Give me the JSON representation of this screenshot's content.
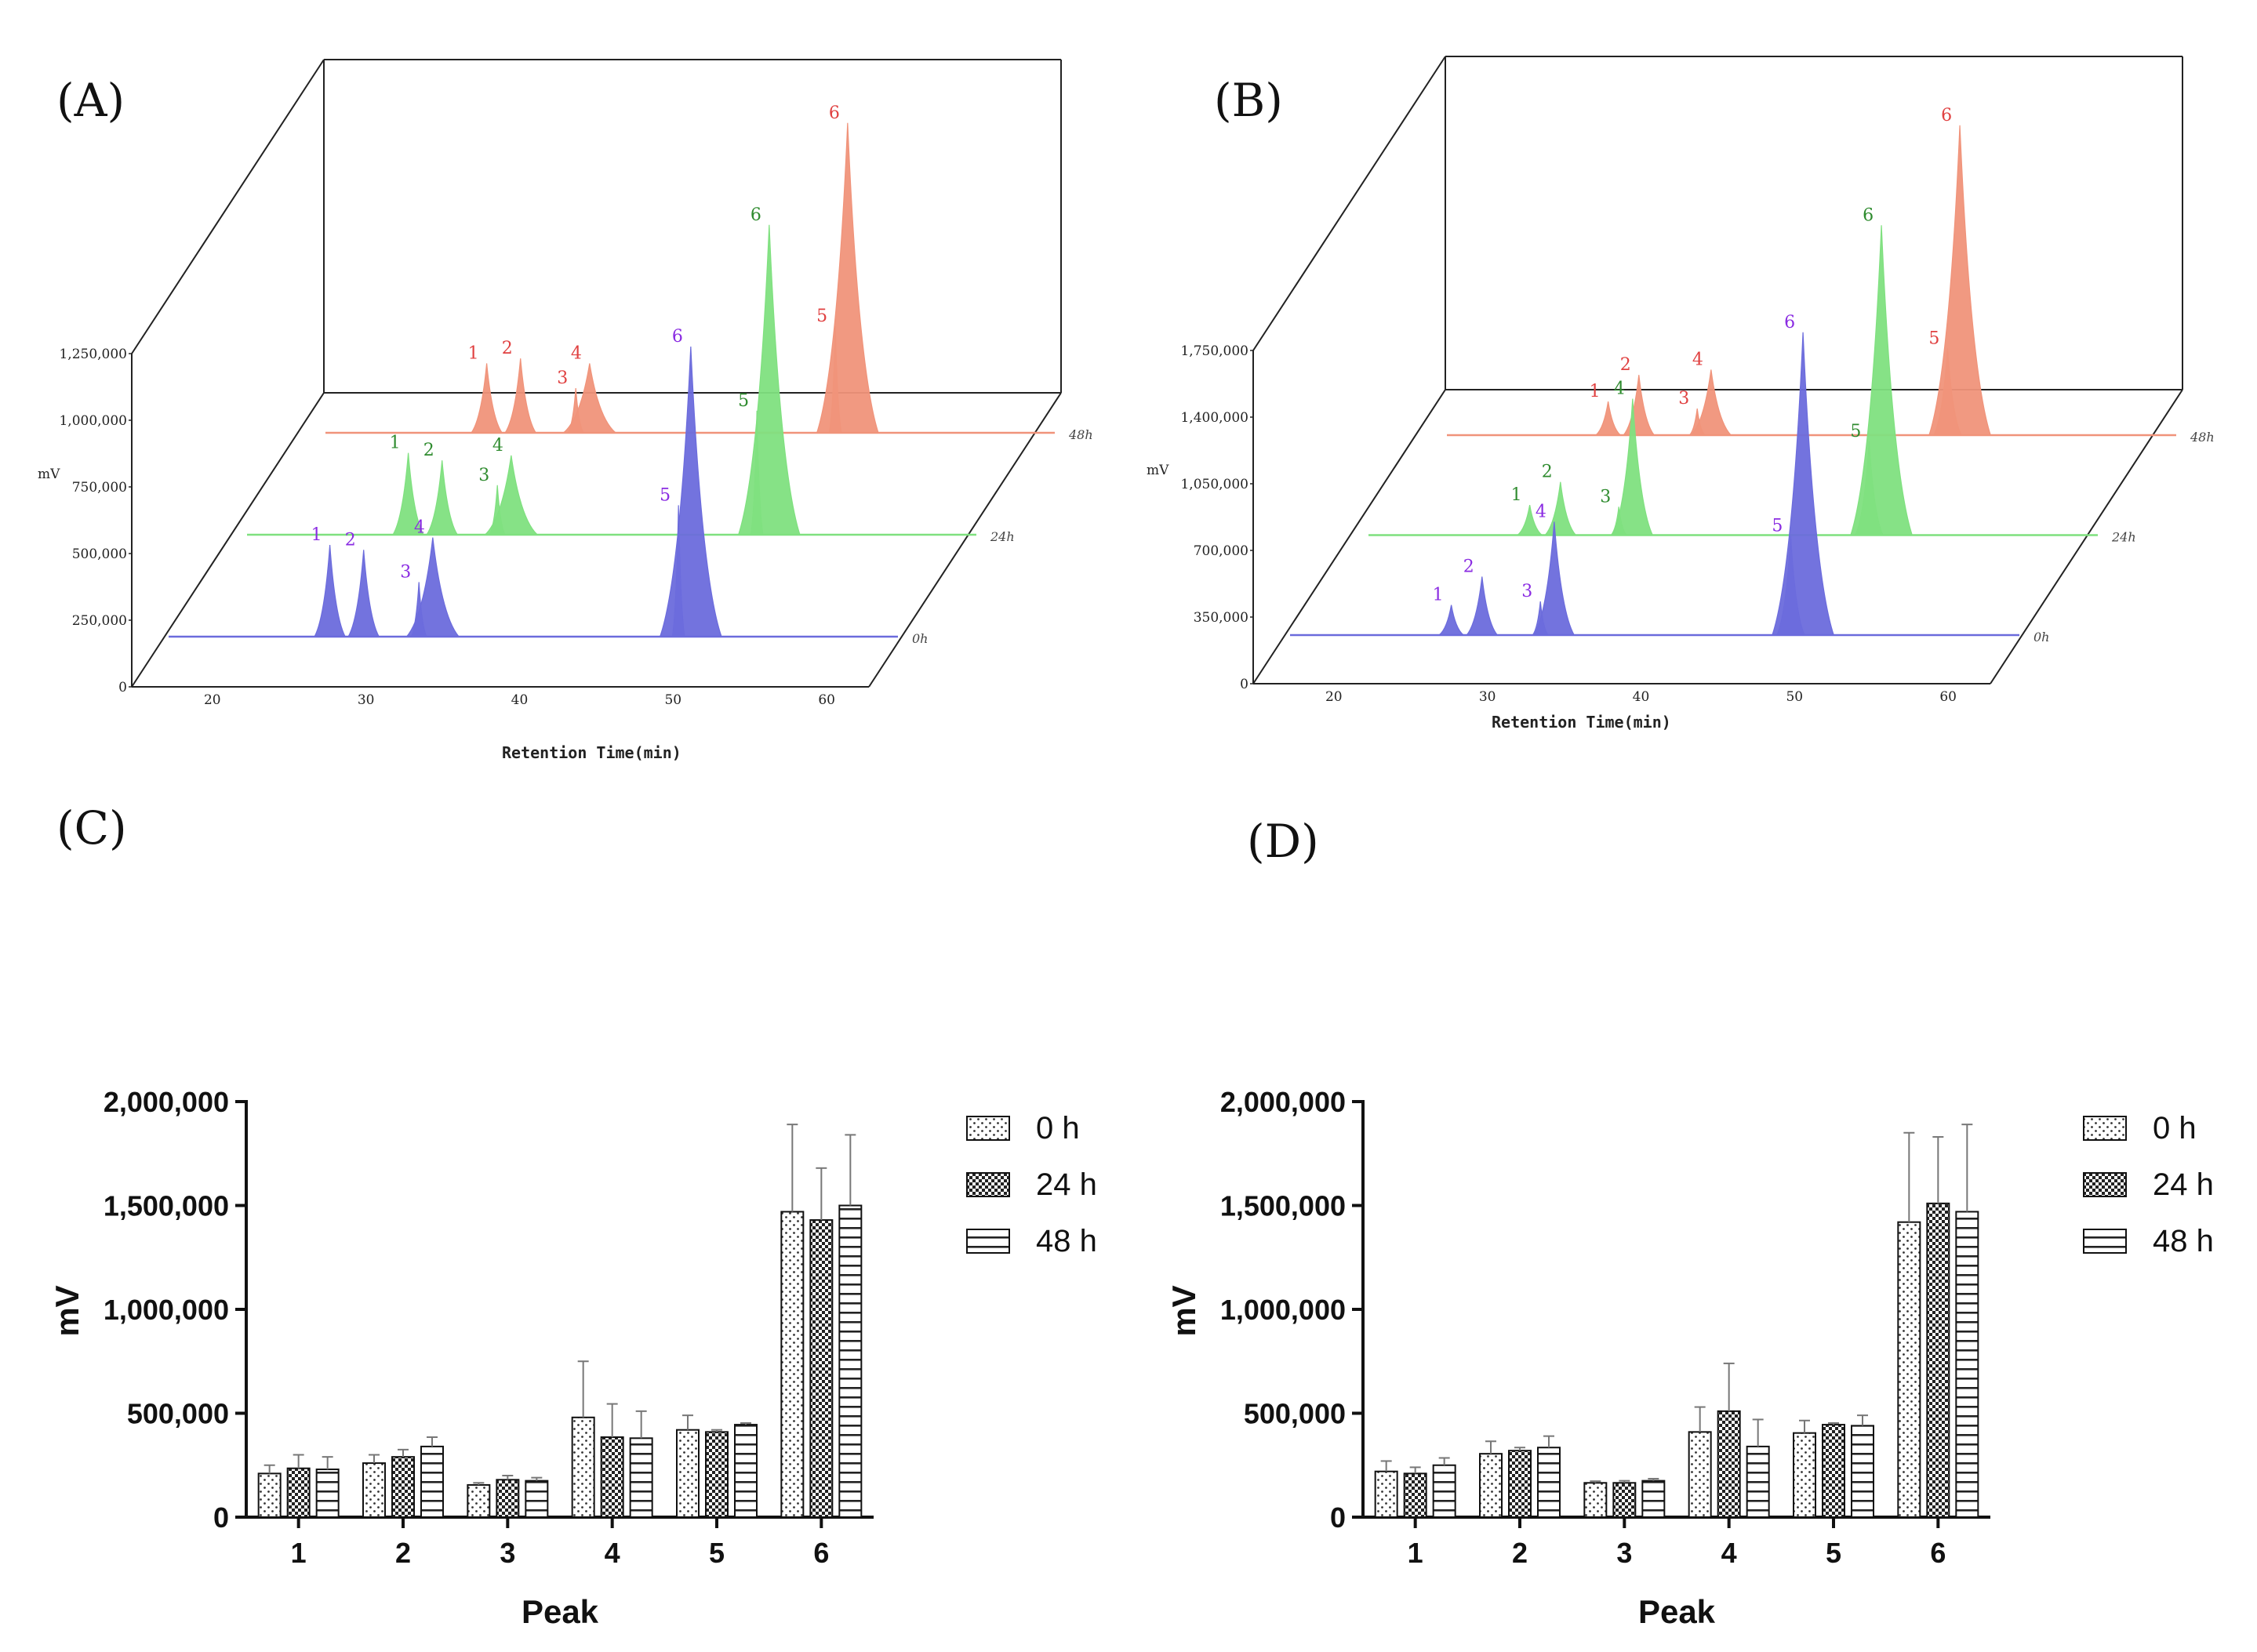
{
  "panels": {
    "A": {
      "label": "(A)",
      "ylabel": "mV",
      "xlabel": "Retention Time(min)",
      "y_ticks": [
        "0",
        "250,000",
        "500,000",
        "750,000",
        "1,000,000",
        "1,250,000"
      ],
      "x_ticks": [
        "20",
        "30",
        "40",
        "50",
        "60"
      ],
      "depth_labels": [
        "0h",
        "24h",
        "48h"
      ]
    },
    "B": {
      "label": "(B)",
      "ylabel": "mV",
      "xlabel": "Retention Time(min)",
      "y_ticks": [
        "0",
        "350,000",
        "700,000",
        "1,050,000",
        "1,400,000",
        "1,750,000"
      ],
      "x_ticks": [
        "20",
        "30",
        "40",
        "50",
        "60"
      ],
      "depth_labels": [
        "0h",
        "24h",
        "48h"
      ]
    },
    "C": {
      "label": "(C)"
    },
    "D": {
      "label": "(D)"
    }
  },
  "colors": {
    "series_0h": "#6b6bdc",
    "series_24h": "#7fe07f",
    "series_48h": "#f0937a",
    "label_0h": "#8a2be2",
    "label_24h": "#2e8b2e",
    "label_48h": "#e04040"
  },
  "chart_data": [
    {
      "id": "A",
      "type": "line",
      "xlabel": "Retention Time(min)",
      "ylabel": "mV",
      "xlim": [
        15,
        63
      ],
      "ylim": [
        0,
        1250000
      ],
      "series": [
        {
          "name": "0h",
          "peaks": [
            {
              "label": "1",
              "x": 25.5,
              "y": 370000,
              "w": 1.0
            },
            {
              "label": "2",
              "x": 27.7,
              "y": 350000,
              "w": 1.0
            },
            {
              "label": "3",
              "x": 31.3,
              "y": 220000,
              "w": 0.5
            },
            {
              "label": "4",
              "x": 32.2,
              "y": 400000,
              "w": 1.7
            },
            {
              "label": "5",
              "x": 48.2,
              "y": 530000,
              "w": 0.4
            },
            {
              "label": "6",
              "x": 49.0,
              "y": 1170000,
              "w": 2.0
            }
          ]
        },
        {
          "name": "24h",
          "peaks": [
            {
              "label": "1",
              "x": 25.5,
              "y": 330000,
              "w": 1.0
            },
            {
              "label": "2",
              "x": 27.7,
              "y": 300000,
              "w": 1.0
            },
            {
              "label": "3",
              "x": 31.3,
              "y": 200000,
              "w": 0.5
            },
            {
              "label": "4",
              "x": 32.2,
              "y": 320000,
              "w": 1.7
            },
            {
              "label": "5",
              "x": 48.2,
              "y": 500000,
              "w": 0.4
            },
            {
              "label": "6",
              "x": 49.0,
              "y": 1250000,
              "w": 2.0
            }
          ]
        },
        {
          "name": "48h",
          "peaks": [
            {
              "label": "1",
              "x": 25.5,
              "y": 280000,
              "w": 1.0
            },
            {
              "label": "2",
              "x": 27.7,
              "y": 300000,
              "w": 1.0
            },
            {
              "label": "3",
              "x": 31.3,
              "y": 180000,
              "w": 0.5
            },
            {
              "label": "4",
              "x": 32.2,
              "y": 280000,
              "w": 1.7
            },
            {
              "label": "5",
              "x": 48.2,
              "y": 430000,
              "w": 0.4
            },
            {
              "label": "6",
              "x": 49.0,
              "y": 1250000,
              "w": 2.0
            }
          ]
        }
      ]
    },
    {
      "id": "B",
      "type": "line",
      "xlabel": "Retention Time(min)",
      "ylabel": "mV",
      "xlim": [
        15,
        63
      ],
      "ylim": [
        0,
        1750000
      ],
      "series": [
        {
          "name": "0h",
          "peaks": [
            {
              "label": "1",
              "x": 25.5,
              "y": 170000,
              "w": 0.8
            },
            {
              "label": "2",
              "x": 27.5,
              "y": 330000,
              "w": 1.0
            },
            {
              "label": "3",
              "x": 31.3,
              "y": 190000,
              "w": 0.5
            },
            {
              "label": "4",
              "x": 32.2,
              "y": 640000,
              "w": 1.3
            },
            {
              "label": "5",
              "x": 47.6,
              "y": 560000,
              "w": 0.9
            },
            {
              "label": "6",
              "x": 48.4,
              "y": 1710000,
              "w": 2.0
            }
          ]
        },
        {
          "name": "24h",
          "peaks": [
            {
              "label": "1",
              "x": 25.5,
              "y": 170000,
              "w": 0.8
            },
            {
              "label": "2",
              "x": 27.5,
              "y": 300000,
              "w": 1.0
            },
            {
              "label": "3",
              "x": 31.3,
              "y": 160000,
              "w": 0.5
            },
            {
              "label": "4",
              "x": 32.2,
              "y": 770000,
              "w": 1.3
            },
            {
              "label": "5",
              "x": 47.6,
              "y": 530000,
              "w": 0.9
            },
            {
              "label": "6",
              "x": 48.4,
              "y": 1750000,
              "w": 2.0
            }
          ]
        },
        {
          "name": "48h",
          "peaks": [
            {
              "label": "1",
              "x": 25.5,
              "y": 190000,
              "w": 0.8
            },
            {
              "label": "2",
              "x": 27.5,
              "y": 340000,
              "w": 1.0
            },
            {
              "label": "3",
              "x": 31.3,
              "y": 150000,
              "w": 0.5
            },
            {
              "label": "4",
              "x": 32.2,
              "y": 370000,
              "w": 1.3
            },
            {
              "label": "5",
              "x": 47.6,
              "y": 490000,
              "w": 0.9
            },
            {
              "label": "6",
              "x": 48.4,
              "y": 1750000,
              "w": 2.0
            }
          ]
        }
      ]
    },
    {
      "id": "C",
      "type": "bar",
      "categories": [
        "1",
        "2",
        "3",
        "4",
        "5",
        "6"
      ],
      "xlabel": "Peak",
      "ylabel": "mV",
      "ylim": [
        0,
        2000000
      ],
      "y_ticks": [
        "0",
        "500,000",
        "1,000,000",
        "1,500,000",
        "2,000,000"
      ],
      "legend": "top-right",
      "series": [
        {
          "name": "0 h",
          "pattern": "dots",
          "values": [
            210000,
            260000,
            155000,
            480000,
            420000,
            1470000
          ],
          "errors": [
            40000,
            40000,
            10000,
            270000,
            70000,
            420000
          ]
        },
        {
          "name": "24 h",
          "pattern": "checker",
          "values": [
            235000,
            290000,
            180000,
            385000,
            410000,
            1430000
          ],
          "errors": [
            65000,
            35000,
            20000,
            160000,
            10000,
            250000
          ]
        },
        {
          "name": "48 h",
          "pattern": "hlines",
          "values": [
            230000,
            340000,
            175000,
            380000,
            445000,
            1500000
          ],
          "errors": [
            60000,
            45000,
            15000,
            130000,
            8000,
            340000
          ]
        }
      ]
    },
    {
      "id": "D",
      "type": "bar",
      "categories": [
        "1",
        "2",
        "3",
        "4",
        "5",
        "6"
      ],
      "xlabel": "Peak",
      "ylabel": "mV",
      "ylim": [
        0,
        2000000
      ],
      "y_ticks": [
        "0",
        "500,000",
        "1,000,000",
        "1,500,000",
        "2,000,000"
      ],
      "legend": "top-right",
      "series": [
        {
          "name": "0 h",
          "pattern": "dots",
          "values": [
            220000,
            305000,
            165000,
            410000,
            405000,
            1420000
          ],
          "errors": [
            50000,
            60000,
            8000,
            120000,
            60000,
            430000
          ]
        },
        {
          "name": "24 h",
          "pattern": "checker",
          "values": [
            210000,
            320000,
            165000,
            510000,
            445000,
            1510000
          ],
          "errors": [
            30000,
            15000,
            10000,
            230000,
            8000,
            320000
          ]
        },
        {
          "name": "48 h",
          "pattern": "hlines",
          "values": [
            250000,
            335000,
            175000,
            340000,
            440000,
            1470000
          ],
          "errors": [
            35000,
            55000,
            10000,
            130000,
            50000,
            420000
          ]
        }
      ]
    }
  ]
}
